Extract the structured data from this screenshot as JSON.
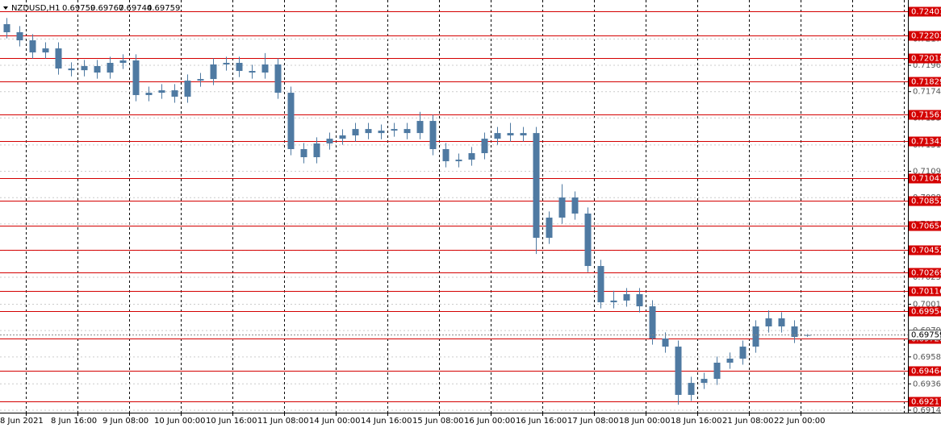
{
  "chart_data": {
    "type": "candlestick",
    "symbol": "NZDUSD,H1",
    "categories": [
      "8 Jun 2021",
      "8 Jun 16:00",
      "9 Jun 08:00",
      "10 Jun 00:00",
      "10 Jun 16:00",
      "11 Jun 08:00",
      "14 Jun 00:00",
      "14 Jun 16:00",
      "15 Jun 08:00",
      "16 Jun 00:00",
      "16 Jun 16:00",
      "17 Jun 08:00",
      "18 Jun 00:00",
      "18 Jun 16:00",
      "21 Jun 08:00",
      "22 Jun 00:00"
    ],
    "open": [
      0.72296,
      0.7223,
      0.72164,
      0.72065,
      0.72098,
      0.71934,
      0.7192,
      0.71954,
      0.71901,
      0.7198,
      0.72,
      0.71717,
      0.71736,
      0.71756,
      0.71704,
      0.71835,
      0.71848,
      0.71967,
      0.7198,
      0.71914,
      0.71901,
      0.71967,
      0.71736,
      0.71276,
      0.7121,
      0.71322,
      0.71361,
      0.71388,
      0.7144,
      0.71407,
      0.71427,
      0.7144,
      0.71407,
      0.71506,
      0.71276,
      0.71177,
      0.7119,
      0.71243,
      0.71361,
      0.71407,
      0.71388,
      0.71407,
      0.70552,
      0.70717,
      0.70881,
      0.7075,
      0.70322,
      0.70026,
      0.7004,
      0.70092,
      0.69993,
      0.6973,
      0.69664,
      0.6927,
      0.69368,
      0.69401,
      0.69533,
      0.69566,
      0.69664,
      0.69829,
      0.69895,
      0.69829,
      0.69759
    ],
    "high": [
      0.72346,
      0.7228,
      0.72214,
      0.72148,
      0.72148,
      0.71984,
      0.72004,
      0.72004,
      0.7203,
      0.7205,
      0.7205,
      0.71786,
      0.71806,
      0.71806,
      0.71885,
      0.71898,
      0.72017,
      0.7203,
      0.7203,
      0.71964,
      0.7206,
      0.72017,
      0.71786,
      0.71326,
      0.71372,
      0.71411,
      0.71438,
      0.7149,
      0.7149,
      0.71477,
      0.7149,
      0.7149,
      0.7158,
      0.71556,
      0.71326,
      0.7124,
      0.71293,
      0.71411,
      0.71457,
      0.7149,
      0.71457,
      0.71457,
      0.70767,
      0.7099,
      0.70931,
      0.708,
      0.70372,
      0.7012,
      0.70142,
      0.70142,
      0.70043,
      0.6978,
      0.69714,
      0.69418,
      0.69451,
      0.69583,
      0.69616,
      0.69714,
      0.69879,
      0.6996,
      0.69945,
      0.69879,
      0.69767
    ],
    "low": [
      0.7218,
      0.72114,
      0.72015,
      0.72015,
      0.71884,
      0.7187,
      0.7187,
      0.71851,
      0.71851,
      0.7193,
      0.71667,
      0.71667,
      0.71686,
      0.71654,
      0.71654,
      0.71785,
      0.71798,
      0.71917,
      0.71864,
      0.71851,
      0.71851,
      0.71686,
      0.71226,
      0.7116,
      0.7116,
      0.71272,
      0.71311,
      0.71338,
      0.71357,
      0.71357,
      0.71377,
      0.71357,
      0.71357,
      0.71226,
      0.71127,
      0.71127,
      0.7114,
      0.71193,
      0.71311,
      0.71338,
      0.71338,
      0.7042,
      0.70502,
      0.70667,
      0.707,
      0.70272,
      0.69976,
      0.69976,
      0.6999,
      0.69943,
      0.6968,
      0.69614,
      0.6919,
      0.6922,
      0.69318,
      0.69351,
      0.69483,
      0.69516,
      0.69614,
      0.69779,
      0.69779,
      0.69693,
      0.69744
    ],
    "close": [
      0.7223,
      0.72164,
      0.72065,
      0.72098,
      0.71934,
      0.7192,
      0.71954,
      0.71901,
      0.7198,
      0.72,
      0.71717,
      0.71736,
      0.71756,
      0.71704,
      0.71835,
      0.71848,
      0.71967,
      0.7198,
      0.71914,
      0.71901,
      0.71967,
      0.71736,
      0.71276,
      0.7121,
      0.71322,
      0.71361,
      0.71388,
      0.7144,
      0.71407,
      0.71427,
      0.7144,
      0.71407,
      0.71506,
      0.71276,
      0.71177,
      0.7119,
      0.71243,
      0.71361,
      0.71407,
      0.71388,
      0.71407,
      0.70552,
      0.70717,
      0.70881,
      0.7075,
      0.70322,
      0.70026,
      0.7004,
      0.70092,
      0.69993,
      0.6973,
      0.69664,
      0.6927,
      0.69368,
      0.69401,
      0.69533,
      0.69566,
      0.69664,
      0.69829,
      0.69895,
      0.69829,
      0.69743,
      0.69759
    ],
    "color": "#4f7aa2",
    "ylim": [
      0.69125,
      0.72493
    ],
    "yticks": [
      0.72175,
      {
        "value": 0.7196,
        "label": "0.71960"
      },
      0.71745,
      {
        "value": 0.7153,
        "label": "0.71530"
      },
      {
        "value": 0.7131,
        "label": "0.71310"
      },
      0.71095,
      {
        "value": 0.7088,
        "label": "0.70880"
      },
      0.70665,
      {
        "value": 0.7045,
        "label": "0.70450"
      },
      {
        "value": 0.7023,
        "label": "0.70230"
      },
      {
        "value": 0.7001,
        "label": "0.70010"
      },
      0.69795,
      {
        "value": 0.6958,
        "label": "0.69580"
      },
      {
        "value": 0.6936,
        "label": "0.69360"
      },
      0.69145
    ],
    "levels": [
      0.72401,
      0.72203,
      0.72018,
      0.71829,
      0.71561,
      0.71343,
      0.71042,
      0.70852,
      0.70654,
      0.70452,
      0.70269,
      0.70116,
      0.69954,
      0.69728,
      0.69464,
      0.69217
    ],
    "level_color": "#d40000",
    "grid": true
  }
}
